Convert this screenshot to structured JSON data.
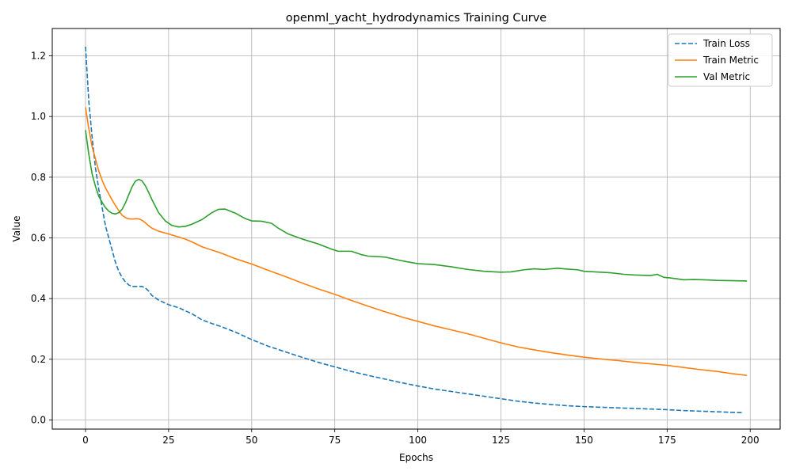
{
  "chart_data": {
    "type": "line",
    "title": "openml_yacht_hydrodynamics Training Curve",
    "xlabel": "Epochs",
    "ylabel": "Value",
    "xlim": [
      -10,
      209
    ],
    "ylim": [
      -0.03,
      1.29
    ],
    "xticks": [
      0,
      25,
      50,
      75,
      100,
      125,
      150,
      175,
      200
    ],
    "yticks": [
      0.0,
      0.2,
      0.4,
      0.6,
      0.8,
      1.0,
      1.2
    ],
    "xtick_labels": [
      "0",
      "25",
      "50",
      "75",
      "100",
      "125",
      "150",
      "175",
      "200"
    ],
    "ytick_labels": [
      "0.0",
      "0.2",
      "0.4",
      "0.6",
      "0.8",
      "1.0",
      "1.2"
    ],
    "grid": true,
    "legend_position": "top-right",
    "series": [
      {
        "name": "Train Loss",
        "color": "#1f77b4",
        "style": "dashed",
        "points": [
          [
            0,
            1.23
          ],
          [
            1,
            1.05
          ],
          [
            2,
            0.93
          ],
          [
            3,
            0.83
          ],
          [
            4,
            0.76
          ],
          [
            5,
            0.7
          ],
          [
            6,
            0.64
          ],
          [
            7,
            0.6
          ],
          [
            8,
            0.56
          ],
          [
            9,
            0.52
          ],
          [
            10,
            0.49
          ],
          [
            11,
            0.47
          ],
          [
            12,
            0.455
          ],
          [
            13,
            0.445
          ],
          [
            14,
            0.44
          ],
          [
            15,
            0.44
          ],
          [
            16,
            0.44
          ],
          [
            17,
            0.44
          ],
          [
            18,
            0.435
          ],
          [
            19,
            0.425
          ],
          [
            20,
            0.41
          ],
          [
            22,
            0.395
          ],
          [
            25,
            0.38
          ],
          [
            28,
            0.37
          ],
          [
            30,
            0.36
          ],
          [
            32,
            0.35
          ],
          [
            35,
            0.33
          ],
          [
            38,
            0.318
          ],
          [
            41,
            0.307
          ],
          [
            45,
            0.29
          ],
          [
            50,
            0.265
          ],
          [
            55,
            0.243
          ],
          [
            60,
            0.225
          ],
          [
            65,
            0.207
          ],
          [
            70,
            0.19
          ],
          [
            75,
            0.175
          ],
          [
            80,
            0.16
          ],
          [
            85,
            0.147
          ],
          [
            90,
            0.135
          ],
          [
            95,
            0.123
          ],
          [
            100,
            0.112
          ],
          [
            105,
            0.102
          ],
          [
            110,
            0.094
          ],
          [
            115,
            0.086
          ],
          [
            120,
            0.078
          ],
          [
            125,
            0.07
          ],
          [
            130,
            0.062
          ],
          [
            135,
            0.056
          ],
          [
            140,
            0.051
          ],
          [
            145,
            0.047
          ],
          [
            150,
            0.044
          ],
          [
            155,
            0.042
          ],
          [
            160,
            0.04
          ],
          [
            165,
            0.038
          ],
          [
            170,
            0.036
          ],
          [
            175,
            0.034
          ],
          [
            180,
            0.031
          ],
          [
            185,
            0.029
          ],
          [
            190,
            0.027
          ],
          [
            195,
            0.025
          ],
          [
            198,
            0.024
          ]
        ]
      },
      {
        "name": "Train Metric",
        "color": "#ff7f0e",
        "style": "solid",
        "points": [
          [
            0,
            1.03
          ],
          [
            1,
            0.96
          ],
          [
            2,
            0.9
          ],
          [
            3,
            0.86
          ],
          [
            4,
            0.82
          ],
          [
            5,
            0.79
          ],
          [
            6,
            0.765
          ],
          [
            7,
            0.745
          ],
          [
            8,
            0.725
          ],
          [
            9,
            0.707
          ],
          [
            10,
            0.69
          ],
          [
            11,
            0.675
          ],
          [
            12,
            0.667
          ],
          [
            13,
            0.663
          ],
          [
            14,
            0.662
          ],
          [
            15,
            0.663
          ],
          [
            16,
            0.663
          ],
          [
            17,
            0.658
          ],
          [
            18,
            0.65
          ],
          [
            19,
            0.64
          ],
          [
            20,
            0.632
          ],
          [
            22,
            0.622
          ],
          [
            25,
            0.613
          ],
          [
            28,
            0.603
          ],
          [
            30,
            0.596
          ],
          [
            32,
            0.587
          ],
          [
            35,
            0.571
          ],
          [
            38,
            0.56
          ],
          [
            40,
            0.553
          ],
          [
            42,
            0.545
          ],
          [
            45,
            0.532
          ],
          [
            50,
            0.514
          ],
          [
            55,
            0.493
          ],
          [
            60,
            0.473
          ],
          [
            65,
            0.452
          ],
          [
            70,
            0.432
          ],
          [
            75,
            0.414
          ],
          [
            80,
            0.394
          ],
          [
            85,
            0.375
          ],
          [
            90,
            0.357
          ],
          [
            95,
            0.34
          ],
          [
            100,
            0.325
          ],
          [
            105,
            0.31
          ],
          [
            110,
            0.297
          ],
          [
            115,
            0.284
          ],
          [
            120,
            0.269
          ],
          [
            125,
            0.254
          ],
          [
            130,
            0.241
          ],
          [
            135,
            0.231
          ],
          [
            140,
            0.222
          ],
          [
            145,
            0.214
          ],
          [
            150,
            0.207
          ],
          [
            155,
            0.201
          ],
          [
            160,
            0.196
          ],
          [
            165,
            0.19
          ],
          [
            170,
            0.185
          ],
          [
            175,
            0.18
          ],
          [
            180,
            0.173
          ],
          [
            185,
            0.166
          ],
          [
            190,
            0.16
          ],
          [
            195,
            0.152
          ],
          [
            199,
            0.147
          ]
        ]
      },
      {
        "name": "Val Metric",
        "color": "#2ca02c",
        "style": "solid",
        "points": [
          [
            0,
            0.955
          ],
          [
            1,
            0.875
          ],
          [
            2,
            0.81
          ],
          [
            3,
            0.77
          ],
          [
            4,
            0.737
          ],
          [
            5,
            0.717
          ],
          [
            6,
            0.7
          ],
          [
            7,
            0.688
          ],
          [
            8,
            0.681
          ],
          [
            9,
            0.679
          ],
          [
            10,
            0.683
          ],
          [
            11,
            0.694
          ],
          [
            12,
            0.715
          ],
          [
            13,
            0.742
          ],
          [
            14,
            0.768
          ],
          [
            15,
            0.787
          ],
          [
            16,
            0.793
          ],
          [
            17,
            0.788
          ],
          [
            18,
            0.772
          ],
          [
            19,
            0.75
          ],
          [
            20,
            0.726
          ],
          [
            22,
            0.683
          ],
          [
            24,
            0.656
          ],
          [
            26,
            0.641
          ],
          [
            28,
            0.636
          ],
          [
            30,
            0.638
          ],
          [
            32,
            0.645
          ],
          [
            35,
            0.66
          ],
          [
            38,
            0.683
          ],
          [
            40,
            0.694
          ],
          [
            42,
            0.695
          ],
          [
            45,
            0.682
          ],
          [
            48,
            0.664
          ],
          [
            50,
            0.656
          ],
          [
            53,
            0.655
          ],
          [
            56,
            0.648
          ],
          [
            58,
            0.632
          ],
          [
            61,
            0.613
          ],
          [
            65,
            0.597
          ],
          [
            70,
            0.58
          ],
          [
            74,
            0.563
          ],
          [
            76,
            0.556
          ],
          [
            80,
            0.556
          ],
          [
            83,
            0.545
          ],
          [
            85,
            0.54
          ],
          [
            90,
            0.537
          ],
          [
            95,
            0.525
          ],
          [
            100,
            0.515
          ],
          [
            105,
            0.512
          ],
          [
            110,
            0.505
          ],
          [
            115,
            0.496
          ],
          [
            120,
            0.49
          ],
          [
            125,
            0.487
          ],
          [
            128,
            0.488
          ],
          [
            132,
            0.495
          ],
          [
            135,
            0.498
          ],
          [
            138,
            0.496
          ],
          [
            142,
            0.5
          ],
          [
            145,
            0.497
          ],
          [
            148,
            0.495
          ],
          [
            150,
            0.49
          ],
          [
            155,
            0.487
          ],
          [
            158,
            0.485
          ],
          [
            162,
            0.48
          ],
          [
            165,
            0.478
          ],
          [
            170,
            0.476
          ],
          [
            172,
            0.48
          ],
          [
            174,
            0.47
          ],
          [
            176,
            0.468
          ],
          [
            180,
            0.462
          ],
          [
            183,
            0.463
          ],
          [
            186,
            0.462
          ],
          [
            190,
            0.46
          ],
          [
            195,
            0.459
          ],
          [
            199,
            0.458
          ]
        ]
      }
    ]
  }
}
